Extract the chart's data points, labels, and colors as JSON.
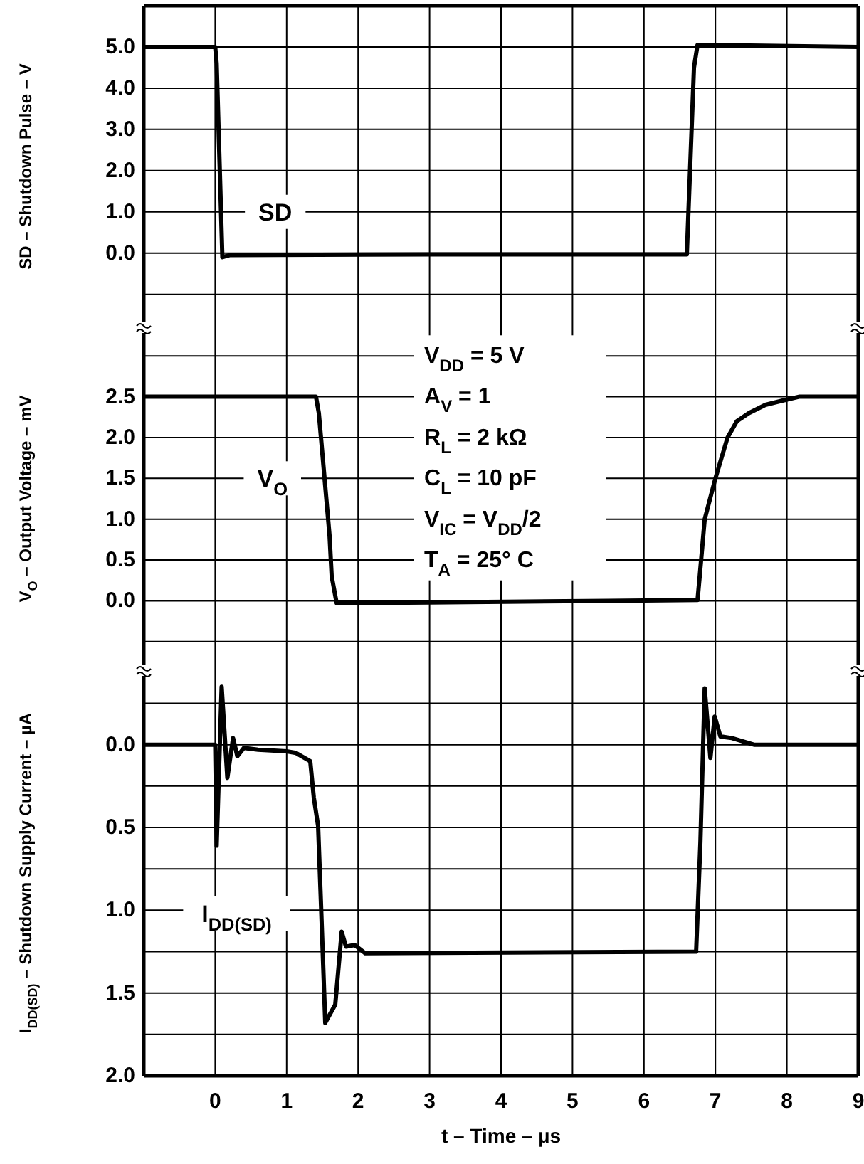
{
  "chart_data": [
    {
      "type": "line",
      "ylabel": "SD – Shutdown Pulse – V",
      "xlim": [
        -1,
        9
      ],
      "xticks": [
        {
          "value": -1,
          "label": null
        },
        {
          "value": 0,
          "label": null
        },
        {
          "value": 1,
          "label": null
        },
        {
          "value": 2,
          "label": null
        },
        {
          "value": 3,
          "label": null
        },
        {
          "value": 4,
          "label": null
        },
        {
          "value": 5,
          "label": null
        },
        {
          "value": 6,
          "label": null
        },
        {
          "value": 7,
          "label": null
        },
        {
          "value": 8,
          "label": null
        },
        {
          "value": 9,
          "label": null
        }
      ],
      "ylim": [
        -1.8,
        6
      ],
      "yticks": [
        {
          "value": -1,
          "label": null
        },
        {
          "value": 0,
          "label": "0.0"
        },
        {
          "value": 1,
          "label": "1.0"
        },
        {
          "value": 2,
          "label": "2.0"
        },
        {
          "value": 3,
          "label": "3.0"
        },
        {
          "value": 4,
          "label": "4.0"
        },
        {
          "value": 5,
          "label": "5.0"
        }
      ],
      "grid": true,
      "tick_labels": "y",
      "series": [
        {
          "color": "#000000",
          "x": [
            -1,
            0,
            0.02,
            0.1,
            0.2,
            3,
            6.6,
            6.7,
            6.75,
            9
          ],
          "values": [
            5,
            5,
            4.6,
            -0.1,
            -0.05,
            -0.03,
            -0.03,
            4.5,
            5.05,
            5
          ]
        }
      ],
      "annotations": [
        {
          "text": "SD",
          "x": 0.84,
          "y": 1.0
        }
      ]
    },
    {
      "type": "line",
      "ylabel": "V$_{O}$ – Output Voltage – mV",
      "xlim": [
        -1,
        9
      ],
      "xticks": [
        {
          "value": -1,
          "label": null
        },
        {
          "value": 0,
          "label": null
        },
        {
          "value": 1,
          "label": null
        },
        {
          "value": 2,
          "label": null
        },
        {
          "value": 3,
          "label": null
        },
        {
          "value": 4,
          "label": null
        },
        {
          "value": 5,
          "label": null
        },
        {
          "value": 6,
          "label": null
        },
        {
          "value": 7,
          "label": null
        },
        {
          "value": 8,
          "label": null
        },
        {
          "value": 9,
          "label": null
        }
      ],
      "ylim": [
        -0.85,
        3.35
      ],
      "yticks": [
        {
          "value": -0.5,
          "label": null
        },
        {
          "value": 0,
          "label": "0.0"
        },
        {
          "value": 0.5,
          "label": "0.5"
        },
        {
          "value": 1,
          "label": "1.0"
        },
        {
          "value": 1.5,
          "label": "1.5"
        },
        {
          "value": 2,
          "label": "2.0"
        },
        {
          "value": 2.5,
          "label": "2.5"
        },
        {
          "value": 3,
          "label": null
        }
      ],
      "grid": true,
      "tick_labels": "y",
      "series": [
        {
          "color": "#000000",
          "x": [
            -1,
            1.41,
            1.45,
            1.53,
            1.6,
            1.63,
            1.7,
            3,
            5.5,
            6.75,
            6.78,
            6.85,
            7.0,
            7.17,
            7.3,
            7.47,
            7.7,
            7.93,
            8.17,
            9
          ],
          "values": [
            2.5,
            2.5,
            2.3,
            1.5,
            0.8,
            0.3,
            -0.03,
            -0.02,
            0,
            0.01,
            0.3,
            1.0,
            1.5,
            2.0,
            2.2,
            2.3,
            2.4,
            2.45,
            2.5,
            2.5
          ]
        }
      ],
      "annotations": [
        {
          "text": "V$_{O}$",
          "x": 0.8,
          "y": 1.5
        },
        "V$_{DD}$ = 5 V",
        "A$_{V}$ = 1",
        "R$_{L}$ = 2 kΩ",
        "C$_{L}$ = 10 pF",
        "V$_{IC}$ = V$_{DD}$/2",
        "T$_{A}$ = 25° C"
      ]
    },
    {
      "type": "line",
      "ylabel": "I$_{DD(SD)}$ – Shutdown Supply Current – µA",
      "xlabel": "t – Time – µs",
      "xlim": [
        -1,
        9
      ],
      "xticks": [
        {
          "value": -1,
          "label": null
        },
        0,
        1,
        2,
        3,
        4,
        5,
        6,
        7,
        8,
        9
      ],
      "ylim": [
        2.0,
        -0.45
      ],
      "yticks": [
        {
          "value": -0.25,
          "label": null
        },
        {
          "value": 0,
          "label": "0.0"
        },
        {
          "value": 0.25,
          "label": null
        },
        {
          "value": 0.5,
          "label": "0.5"
        },
        {
          "value": 0.75,
          "label": null
        },
        {
          "value": 1,
          "label": "1.0"
        },
        {
          "value": 1.25,
          "label": null
        },
        {
          "value": 1.5,
          "label": "1.5"
        },
        {
          "value": 1.75,
          "label": null
        },
        {
          "value": 2,
          "label": "2.0"
        }
      ],
      "grid": true,
      "series": [
        {
          "name": "I$_{DD(SD)}$",
          "color": "#000000",
          "x": [
            -1,
            0,
            0.02,
            0.09,
            0.17,
            0.25,
            0.31,
            0.4,
            0.6,
            1.0,
            1.13,
            1.33,
            1.38,
            1.44,
            1.48,
            1.54,
            1.68,
            1.77,
            1.83,
            1.95,
            2.1,
            6.73,
            6.79,
            6.85,
            6.93,
            6.99,
            7.07,
            7.23,
            7.54,
            9
          ],
          "values": [
            0,
            0,
            0.61,
            -0.35,
            0.2,
            -0.04,
            0.07,
            0.02,
            0.03,
            0.04,
            0.05,
            0.1,
            0.32,
            0.49,
            0.96,
            1.68,
            1.57,
            1.13,
            1.22,
            1.21,
            1.26,
            1.25,
            0.59,
            -0.34,
            0.08,
            -0.17,
            -0.05,
            -0.04,
            0,
            0
          ]
        }
      ]
    }
  ]
}
